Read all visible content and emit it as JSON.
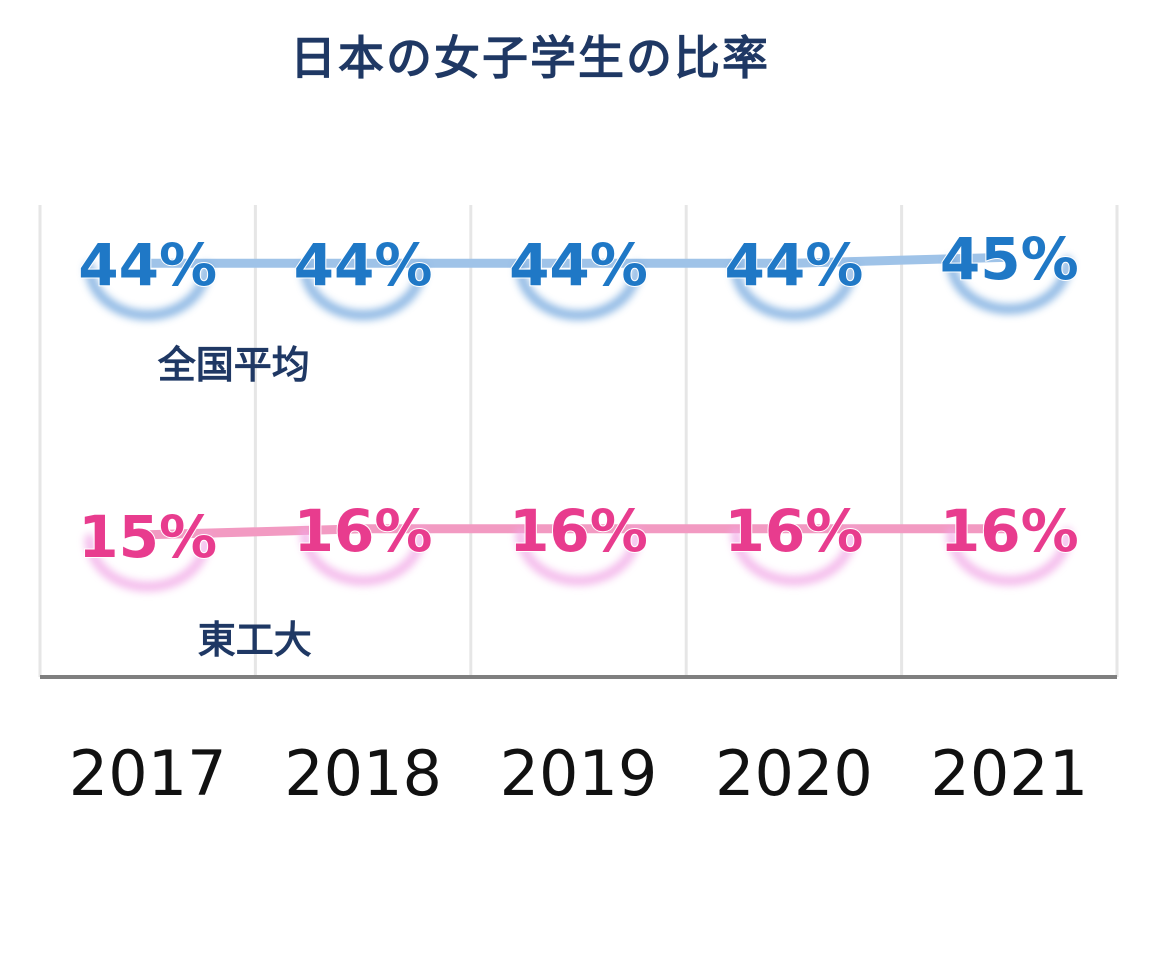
{
  "chart_data": {
    "type": "line",
    "title": "日本の女子学生の比率",
    "categories": [
      "2017",
      "2018",
      "2019",
      "2020",
      "2021"
    ],
    "unit": "%",
    "series": [
      {
        "name": "全国平均",
        "values": [
          44,
          44,
          44,
          44,
          45
        ],
        "labels": [
          "44%",
          "44%",
          "44%",
          "44%",
          "45%"
        ],
        "color": "#1f78c6",
        "line_color": "#9fc3e8",
        "glow_color": "#6aa2dc"
      },
      {
        "name": "東工大",
        "values": [
          15,
          16,
          16,
          16,
          16
        ],
        "labels": [
          "15%",
          "16%",
          "16%",
          "16%",
          "16%"
        ],
        "color": "#e83c8e",
        "line_color": "#f29ac2",
        "glow_color": "#f1a6e6"
      }
    ],
    "xlabel": "",
    "ylabel": "",
    "grid": true,
    "axis_line_color": "#7f7f7f",
    "title_color": "#1f3864"
  }
}
